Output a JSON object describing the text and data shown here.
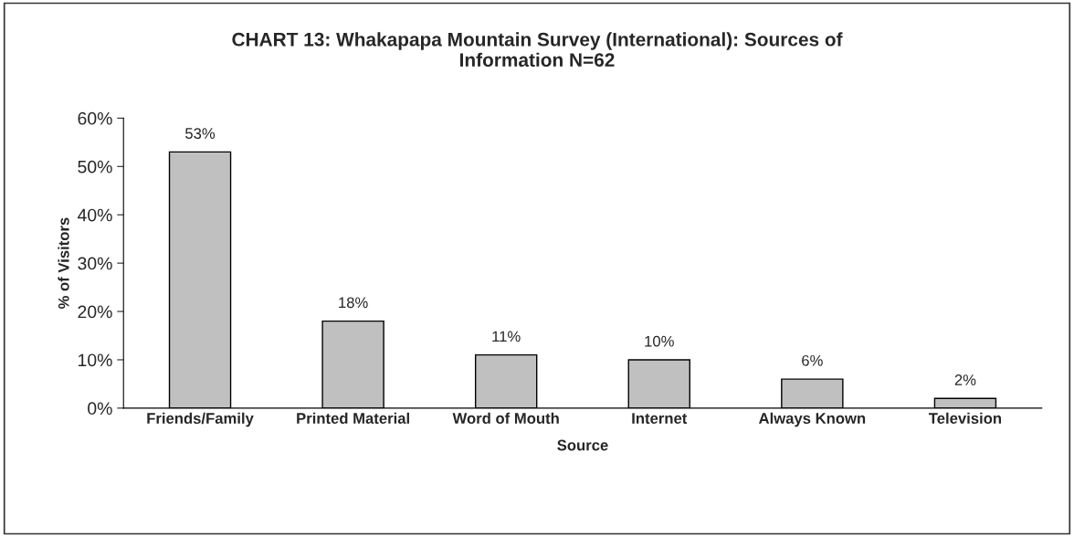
{
  "chart_data": {
    "type": "bar",
    "title": "CHART 13: Whakapapa Mountain Survey (International): Sources of\nInformation N=62",
    "xlabel": "Source",
    "ylabel": "% of Visitors",
    "categories": [
      "Friends/Family",
      "Printed Material",
      "Word of Mouth",
      "Internet",
      "Always Known",
      "Television"
    ],
    "values": [
      53,
      18,
      11,
      10,
      6,
      2
    ],
    "value_labels": [
      "53%",
      "18%",
      "11%",
      "10%",
      "6%",
      "2%"
    ],
    "color": "#c0c0c0",
    "ylim": [
      0,
      60
    ],
    "yticks": [
      {
        "value": 0,
        "label": "0%"
      },
      {
        "value": 10,
        "label": "10%"
      },
      {
        "value": 20,
        "label": "20%"
      },
      {
        "value": 30,
        "label": "30%"
      },
      {
        "value": 40,
        "label": "40%"
      },
      {
        "value": 50,
        "label": "50%"
      },
      {
        "value": 60,
        "label": "60%"
      }
    ],
    "grid": false,
    "legend": false
  }
}
